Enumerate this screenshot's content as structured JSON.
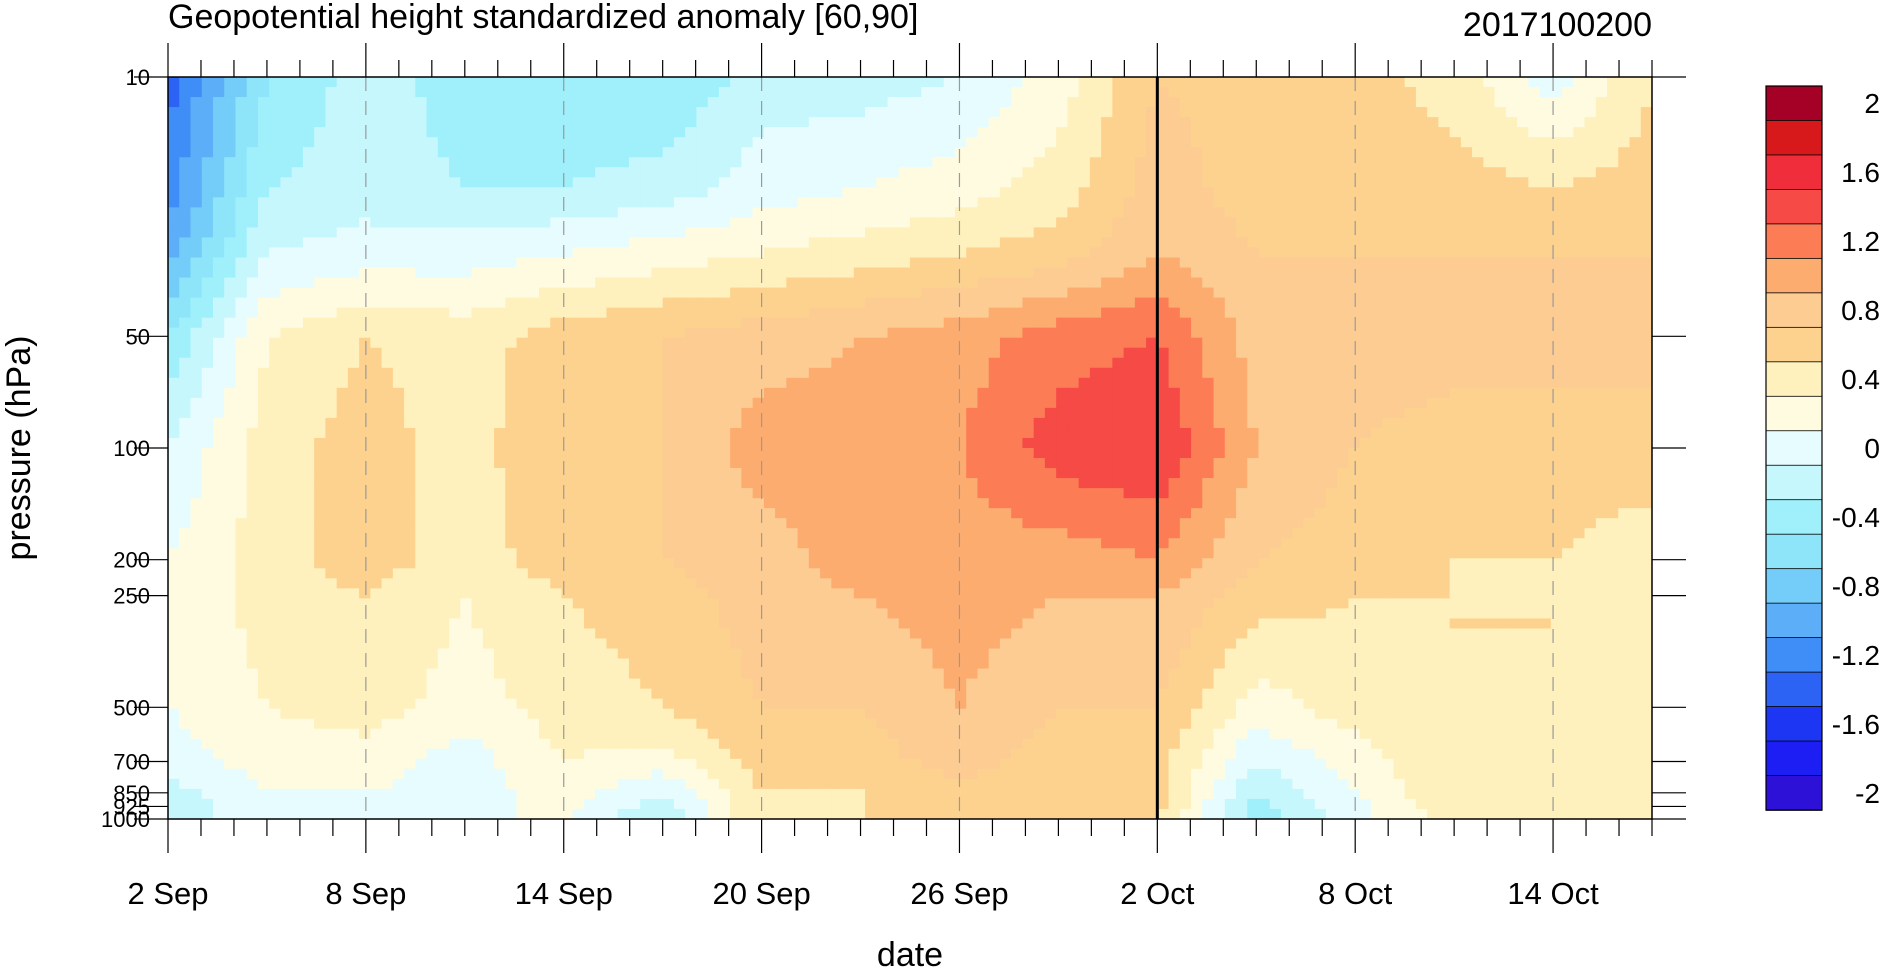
{
  "chart_data": {
    "type": "heatmap",
    "subtype": "filled-contour",
    "title": "Geopotential height standardized anomaly [60,90]",
    "date_label": "2017100200",
    "xlabel": "date",
    "ylabel": "pressure (hPa)",
    "x_ticks": [
      "2 Sep",
      "8 Sep",
      "14 Sep",
      "20 Sep",
      "26 Sep",
      "2 Oct",
      "8 Oct",
      "14 Oct"
    ],
    "x_tick_days": [
      0,
      6,
      12,
      18,
      24,
      30,
      36,
      42
    ],
    "x_range_days": [
      0,
      45
    ],
    "y_ticks": [
      "10",
      "50",
      "100",
      "200",
      "250",
      "500",
      "700",
      "850",
      "925",
      "1000"
    ],
    "y_tick_values": [
      10,
      50,
      100,
      200,
      250,
      500,
      700,
      850,
      925,
      1000
    ],
    "y_range": [
      10,
      1000
    ],
    "y_scale": "log",
    "y_reversed": true,
    "vertical_line_day": 30,
    "vertical_line_label": "2 Oct",
    "colorbar": {
      "labels": [
        "2",
        "1.6",
        "1.2",
        "0.8",
        "0.4",
        "0",
        "-0.4",
        "-0.8",
        "-1.2",
        "-1.6",
        "-2"
      ],
      "label_values": [
        2,
        1.6,
        1.2,
        0.8,
        0.4,
        0,
        -0.4,
        -0.8,
        -1.2,
        -1.6,
        -2
      ],
      "levels": [
        -2.0,
        -1.8,
        -1.6,
        -1.4,
        -1.2,
        -1.0,
        -0.8,
        -0.6,
        -0.4,
        -0.2,
        0,
        0.2,
        0.4,
        0.6,
        0.8,
        1.0,
        1.2,
        1.4,
        1.6,
        1.8,
        2.0
      ],
      "colors": [
        "#a50026",
        "#d7191c",
        "#ef2d3b",
        "#f54a45",
        "#fc7c55",
        "#fdac70",
        "#fdcc93",
        "#fdd28f",
        "#fef1bd",
        "#fefbe1",
        "#e6fcfe",
        "#c5f7fc",
        "#9ff0fb",
        "#8ee5fa",
        "#73cdf8",
        "#5caef9",
        "#3f8ef7",
        "#2d63f5",
        "#1c36f4",
        "#1d1ef3",
        "#2d11d6"
      ]
    },
    "values_note": "Estimated anomaly field on (day, pressure) grid",
    "grid_days": [
      0,
      3,
      6,
      9,
      12,
      15,
      18,
      21,
      24,
      27,
      30,
      33,
      36,
      39,
      42,
      45
    ],
    "grid_pressures": [
      10,
      20,
      30,
      50,
      100,
      200,
      250,
      500,
      700,
      850,
      1000
    ],
    "values": [
      [
        -1.5,
        -0.6,
        -0.3,
        -0.5,
        -0.6,
        -0.6,
        -0.3,
        -0.3,
        -0.2,
        0.1,
        0.6,
        0.5,
        0.5,
        0.3,
        -0.1,
        0.4
      ],
      [
        -1.3,
        -0.4,
        -0.3,
        -0.4,
        -0.4,
        -0.3,
        -0.1,
        0.0,
        0.1,
        0.3,
        0.7,
        0.5,
        0.5,
        0.5,
        0.4,
        0.5
      ],
      [
        -1.1,
        -0.2,
        -0.1,
        -0.1,
        0.0,
        0.1,
        0.2,
        0.3,
        0.4,
        0.5,
        0.8,
        0.6,
        0.6,
        0.6,
        0.6,
        0.6
      ],
      [
        -0.6,
        0.2,
        0.4,
        0.3,
        0.5,
        0.6,
        0.7,
        0.8,
        0.9,
        1.1,
        1.2,
        0.7,
        0.7,
        0.7,
        0.7,
        0.7
      ],
      [
        -0.2,
        0.3,
        0.5,
        0.3,
        0.6,
        0.6,
        0.9,
        0.9,
        1.0,
        1.3,
        1.4,
        0.8,
        0.6,
        0.5,
        0.5,
        0.5
      ],
      [
        0.0,
        0.3,
        0.5,
        0.3,
        0.5,
        0.6,
        0.7,
        0.9,
        0.9,
        0.9,
        1.0,
        0.6,
        0.5,
        0.4,
        0.4,
        0.3
      ],
      [
        0.0,
        0.3,
        0.4,
        0.2,
        0.4,
        0.5,
        0.7,
        0.8,
        0.9,
        0.8,
        0.8,
        0.5,
        0.4,
        0.4,
        0.4,
        0.3
      ],
      [
        0.0,
        0.2,
        0.3,
        0.1,
        0.3,
        0.4,
        0.6,
        0.6,
        0.8,
        0.6,
        0.6,
        0.1,
        0.3,
        0.4,
        0.4,
        0.3
      ],
      [
        -0.1,
        0.1,
        0.1,
        -0.1,
        0.2,
        0.1,
        0.5,
        0.5,
        0.7,
        0.5,
        0.5,
        -0.2,
        0.1,
        0.4,
        0.4,
        0.3
      ],
      [
        -0.3,
        0.0,
        0.0,
        -0.1,
        0.1,
        -0.2,
        0.4,
        0.4,
        0.5,
        0.5,
        0.5,
        -0.4,
        0.0,
        0.4,
        0.4,
        0.3
      ],
      [
        -0.4,
        0.0,
        0.0,
        0.0,
        0.0,
        -0.4,
        0.4,
        0.4,
        0.4,
        0.4,
        0.4,
        -0.5,
        -0.1,
        0.3,
        0.4,
        0.4
      ]
    ]
  }
}
